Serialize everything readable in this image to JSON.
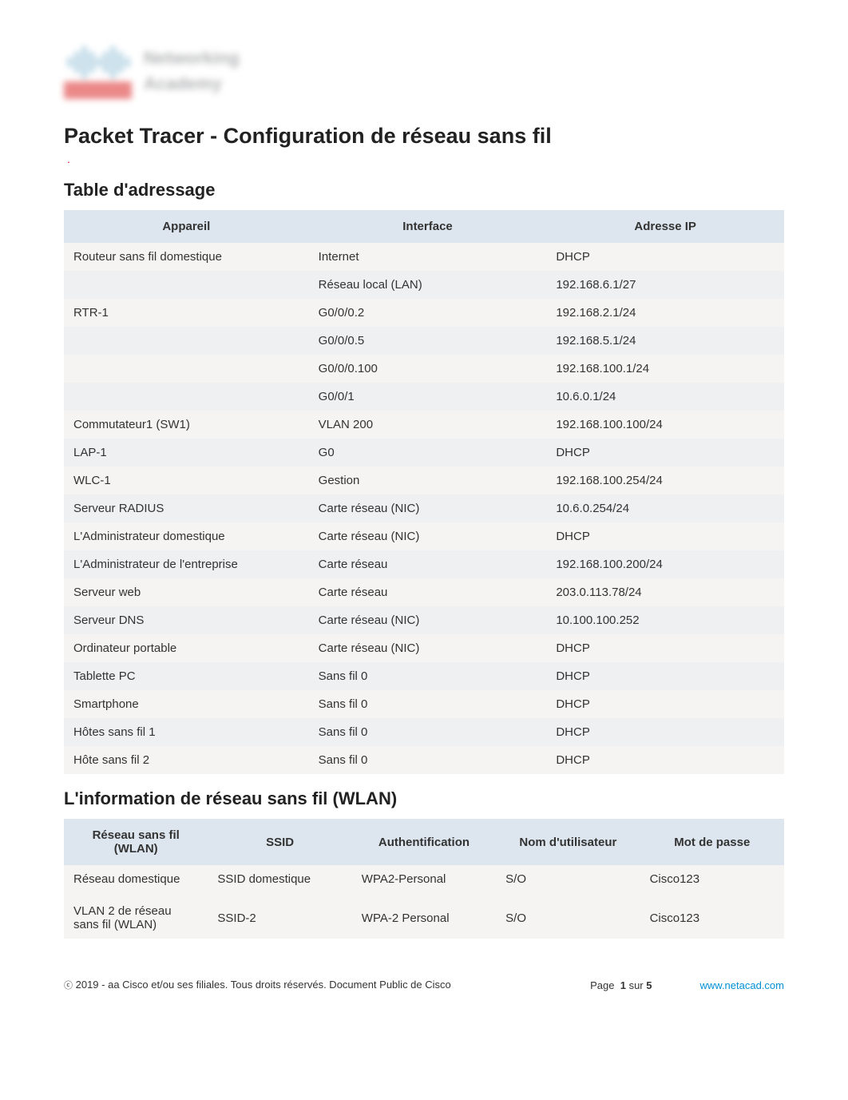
{
  "doc_title": "Packet Tracer - Configuration de réseau sans fil",
  "sections": {
    "addressing_title": "Table d'adressage",
    "wlan_title": "L'information de réseau sans fil (WLAN)"
  },
  "addressing_table": {
    "headers": [
      "Appareil",
      "Interface",
      "Adresse IP"
    ],
    "rows": [
      [
        "Routeur sans fil domestique",
        "Internet",
        "DHCP"
      ],
      [
        "",
        "Réseau local (LAN)",
        "192.168.6.1/27"
      ],
      [
        "RTR-1",
        "G0/0/0.2",
        "192.168.2.1/24"
      ],
      [
        "",
        "G0/0/0.5",
        "192.168.5.1/24"
      ],
      [
        "",
        "G0/0/0.100",
        "192.168.100.1/24"
      ],
      [
        "",
        "G0/0/1",
        "10.6.0.1/24"
      ],
      [
        "Commutateur1 (SW1)",
        "VLAN 200",
        "192.168.100.100/24"
      ],
      [
        "LAP-1",
        "G0",
        "DHCP"
      ],
      [
        "WLC-1",
        "Gestion",
        "192.168.100.254/24"
      ],
      [
        "Serveur RADIUS",
        "Carte réseau (NIC)",
        "10.6.0.254/24"
      ],
      [
        "L'Administrateur domestique",
        "Carte réseau (NIC)",
        "DHCP"
      ],
      [
        "L'Administrateur de l'entreprise",
        "Carte réseau",
        "192.168.100.200/24"
      ],
      [
        "Serveur web",
        "Carte réseau",
        "203.0.113.78/24"
      ],
      [
        "Serveur DNS",
        "Carte réseau (NIC)",
        "10.100.100.252"
      ],
      [
        "Ordinateur portable",
        "Carte réseau (NIC)",
        "DHCP"
      ],
      [
        "Tablette PC",
        "Sans fil 0",
        "DHCP"
      ],
      [
        "Smartphone",
        "Sans fil 0",
        "DHCP"
      ],
      [
        "Hôtes sans fil 1",
        "Sans fil 0",
        "DHCP"
      ],
      [
        "Hôte sans fil 2",
        "Sans fil 0",
        "DHCP"
      ]
    ]
  },
  "wlan_table": {
    "headers": [
      "Réseau sans fil (WLAN)",
      "SSID",
      "Authentification",
      "Nom d'utilisateur",
      "Mot de passe"
    ],
    "rows": [
      [
        "Réseau domestique",
        "SSID domestique",
        "WPA2-Personal",
        "S/O",
        "Cisco123"
      ],
      [
        "VLAN 2 de réseau sans fil (WLAN)",
        "SSID-2",
        "WPA-2 Personal",
        "S/O",
        "Cisco123"
      ]
    ]
  },
  "footer": {
    "copyright": " 2019 - aa Cisco et/ou ses filiales. Tous droits réservés. Document Public de Cisco",
    "page_label": "Page",
    "page_current": "1",
    "page_sep": "sur",
    "page_total": "5",
    "link": "www.netacad.com"
  },
  "colors": {
    "header_bg": "#dde6ef",
    "row_odd": "#f6f4f2",
    "row_even": "#eef0f2",
    "link": "#0090d4",
    "accent": "#de0f3a"
  }
}
